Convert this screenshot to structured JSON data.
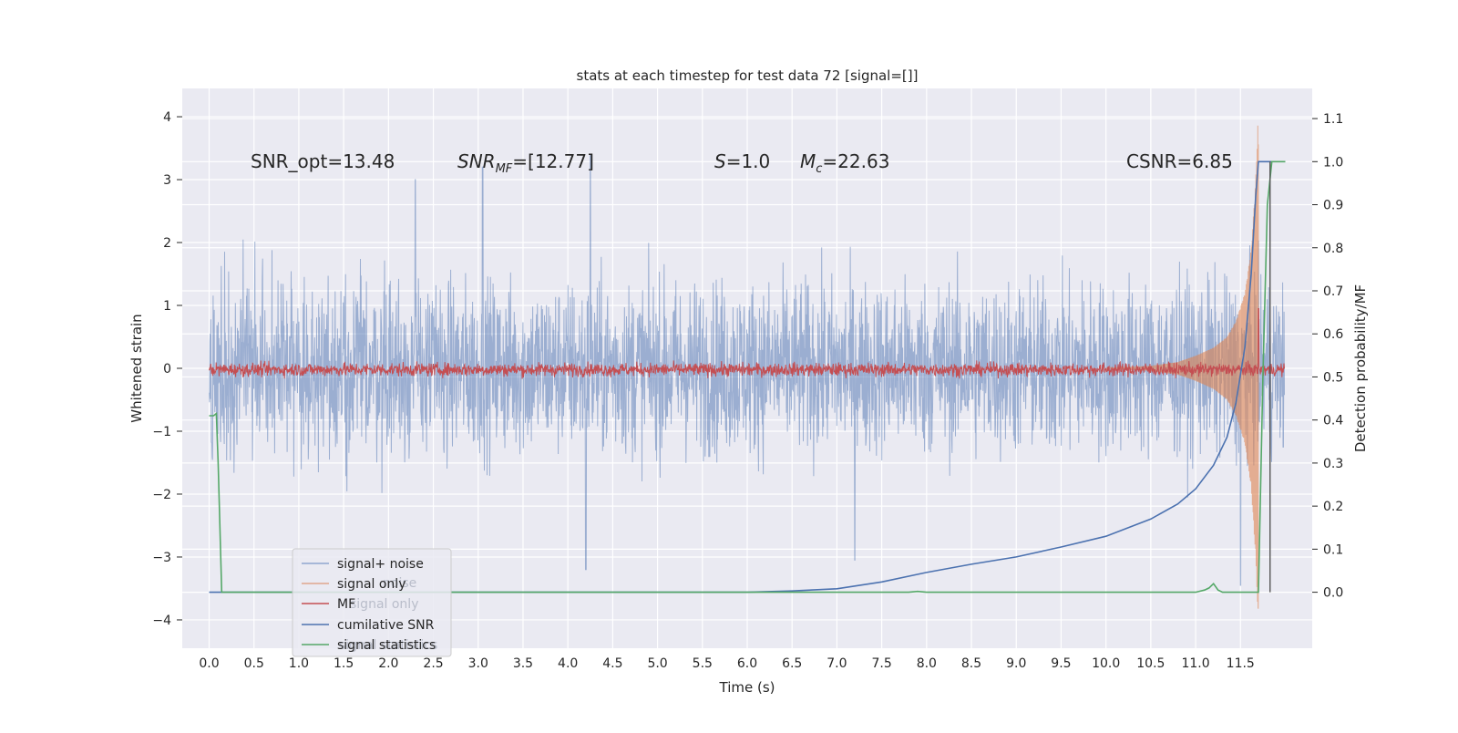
{
  "chart_data": {
    "type": "line",
    "title": "stats at each timestep for test data 72 [signal=[]]",
    "xlabel": "Time (s)",
    "ylabel": "Whitened strain",
    "ylabel_right": "Detection probability/MF",
    "xlim": [
      -0.3,
      12.3
    ],
    "ylim": [
      -4.45,
      4.45
    ],
    "ylim_right": [
      -0.13,
      1.17
    ],
    "x_ticks": [
      0.0,
      0.5,
      1.0,
      1.5,
      2.0,
      2.5,
      3.0,
      3.5,
      4.0,
      4.5,
      5.0,
      5.5,
      6.0,
      6.5,
      7.0,
      7.5,
      8.0,
      8.5,
      9.0,
      9.5,
      10.0,
      10.5,
      11.0,
      11.5
    ],
    "x_tick_labels": [
      "0.0",
      "0.5",
      "1.0",
      "1.5",
      "2.0",
      "2.5",
      "3.0",
      "3.5",
      "4.0",
      "4.5",
      "5.0",
      "5.5",
      "6.0",
      "6.5",
      "7.0",
      "7.5",
      "8.0",
      "8.5",
      "9.0",
      "9.5",
      "10.0",
      "10.5",
      "11.0",
      "11.5"
    ],
    "y_ticks": [
      -4,
      -3,
      -2,
      -1,
      0,
      1,
      2,
      3,
      4
    ],
    "y_tick_labels": [
      "−4",
      "−3",
      "−2",
      "−1",
      "0",
      "1",
      "2",
      "3",
      "4"
    ],
    "y_right_ticks": [
      0.0,
      0.1,
      0.2,
      0.3,
      0.4,
      0.5,
      0.6,
      0.7,
      0.8,
      0.9,
      1.0,
      1.1
    ],
    "y_right_tick_labels": [
      "0.0",
      "0.1",
      "0.2",
      "0.3",
      "0.4",
      "0.5",
      "0.6",
      "0.7",
      "0.8",
      "0.9",
      "1.0",
      "1.1"
    ],
    "grid": true,
    "legend_location": "lower-left",
    "annotations": {
      "snr_opt": "SNR_opt=13.48",
      "snr_mf_main": "SNR",
      "snr_mf_sub": "MF",
      "snr_mf_rest": "=[12.77]",
      "s_main": "S",
      "s_rest": "=1.0",
      "mc_main": "M",
      "mc_sub": "c",
      "mc_rest": "=22.63",
      "csnr": "CSNR=6.85"
    },
    "legend": [
      {
        "label": "signal+ noise",
        "color": "#8fa6cf"
      },
      {
        "label": "signal only",
        "color": "#e0a68c"
      },
      {
        "label": "MF",
        "color": "#c44e52"
      },
      {
        "label": "cumilative SNR",
        "color": "#4c72b0"
      },
      {
        "label": "signal statistics",
        "color": "#55a868"
      }
    ],
    "ghost_legend": {
      "row1": "noise",
      "row2": "signal only",
      "row3": "signal statistics"
    },
    "series": [
      {
        "name": "signal+ noise",
        "axis": "left",
        "color": "#4c72b0",
        "opacity": 0.5,
        "x_range": [
          0.0,
          11.99
        ],
        "envelope_typical": [
          -1.8,
          1.8
        ],
        "extremes": [
          {
            "x": 4.25,
            "y": 3.4
          },
          {
            "x": 3.05,
            "y": 3.2
          },
          {
            "x": 2.3,
            "y": 3.0
          },
          {
            "x": 4.2,
            "y": -3.2
          },
          {
            "x": 11.5,
            "y": -3.45
          },
          {
            "x": 7.2,
            "y": -3.05
          }
        ]
      },
      {
        "name": "signal only",
        "axis": "left",
        "color": "#dd8452",
        "opacity": 0.6,
        "x": [
          10.0,
          10.5,
          10.8,
          11.0,
          11.2,
          11.35,
          11.45,
          11.55,
          11.62,
          11.67,
          11.7
        ],
        "amplitude": [
          0.01,
          0.04,
          0.1,
          0.2,
          0.33,
          0.5,
          0.75,
          1.2,
          1.9,
          3.0,
          4.1
        ]
      },
      {
        "name": "MF",
        "axis": "left",
        "color": "#c44e52",
        "x_range": [
          0.0,
          11.99
        ],
        "center": -0.02,
        "amplitude_typical": 0.12,
        "peak": {
          "x": 11.7,
          "y": 0.95
        }
      },
      {
        "name": "cumilative SNR",
        "axis": "right",
        "color": "#4c72b0",
        "x": [
          0.0,
          6.0,
          6.5,
          7.0,
          7.5,
          8.0,
          8.5,
          9.0,
          9.5,
          10.0,
          10.5,
          10.8,
          11.0,
          11.2,
          11.35,
          11.45,
          11.55,
          11.62,
          11.67,
          11.7,
          11.85
        ],
        "y": [
          0.0,
          0.0,
          0.003,
          0.008,
          0.024,
          0.046,
          0.065,
          0.082,
          0.105,
          0.13,
          0.17,
          0.205,
          0.24,
          0.295,
          0.36,
          0.44,
          0.57,
          0.74,
          0.92,
          1.0,
          1.0
        ]
      },
      {
        "name": "signal statistics",
        "axis": "right",
        "color": "#55a868",
        "x": [
          0.0,
          0.03,
          0.05,
          0.08,
          0.1,
          0.14,
          0.3,
          1.0,
          5.0,
          7.8,
          7.9,
          8.0,
          11.0,
          11.1,
          11.15,
          11.2,
          11.25,
          11.3,
          11.5,
          11.7,
          11.75,
          11.8,
          11.85,
          11.9,
          12.0
        ],
        "y": [
          0.41,
          0.41,
          0.41,
          0.415,
          0.3,
          0.0,
          0.0,
          0.0,
          0.0,
          0.0,
          0.002,
          0.0,
          0.0,
          0.005,
          0.01,
          0.02,
          0.005,
          0.0,
          0.0,
          0.0,
          0.5,
          0.9,
          1.0,
          1.0,
          1.0
        ]
      }
    ],
    "vertical_lines": [
      {
        "x": 11.83,
        "y_right": [
          0.0,
          1.0
        ],
        "color": "#555555"
      }
    ]
  }
}
